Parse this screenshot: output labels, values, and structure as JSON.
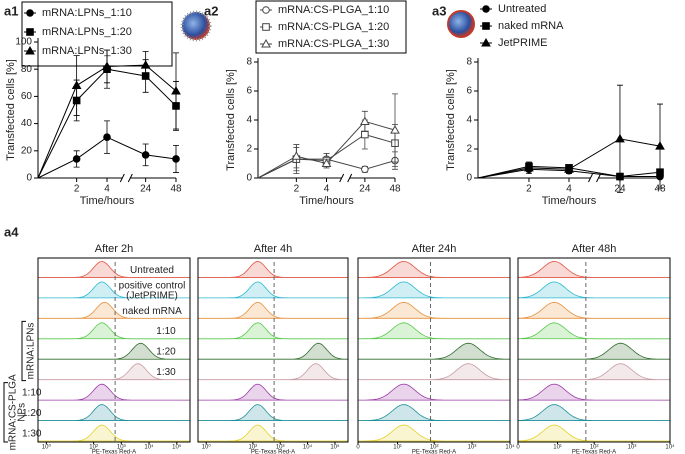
{
  "chart_data": [
    {
      "type": "line",
      "label": "a1",
      "ylabel": "Transfected cells [%]",
      "xlabel": "Time/hours",
      "categories": [
        null,
        "2",
        "4",
        "24",
        "48"
      ],
      "axis_break_after": 2,
      "ylim": [
        0,
        100
      ],
      "yticks": [
        0,
        20,
        40,
        60,
        80,
        100
      ],
      "legend_frame": true,
      "series": [
        {
          "name": "mRNA:LPNs_1:10",
          "color": "#000000",
          "marker": "circle",
          "filled": true,
          "values": [
            0,
            14,
            30,
            17,
            14
          ],
          "errors": [
            null,
            6,
            12,
            8,
            10
          ]
        },
        {
          "name": "mRNA:LPNs_1:20",
          "color": "#000000",
          "marker": "square",
          "filled": true,
          "values": [
            0,
            57,
            80,
            75,
            53
          ],
          "errors": [
            null,
            15,
            14,
            12,
            18
          ]
        },
        {
          "name": "mRNA:LPNs_1:30",
          "color": "#000000",
          "marker": "triangle",
          "filled": true,
          "values": [
            0,
            68,
            82,
            83,
            64
          ],
          "errors": [
            null,
            22,
            12,
            10,
            28
          ]
        }
      ]
    },
    {
      "type": "line",
      "label": "a2",
      "ylabel": "Transfected cells [%]",
      "xlabel": "Time/hours",
      "categories": [
        null,
        "2",
        "4",
        "24",
        "48"
      ],
      "axis_break_after": 2,
      "ylim": [
        0,
        8
      ],
      "yticks": [
        0,
        2,
        4,
        6,
        8
      ],
      "legend_frame": true,
      "series": [
        {
          "name": "mRNA:CS-PLGA_1:10",
          "color": "#444444",
          "marker": "circle",
          "filled": false,
          "values": [
            0,
            1.3,
            1.3,
            0.6,
            1.2
          ],
          "errors": [
            null,
            0.8,
            0.4,
            0.2,
            0.6
          ]
        },
        {
          "name": "mRNA:CS-PLGA_1:20",
          "color": "#444444",
          "marker": "square",
          "filled": false,
          "values": [
            0,
            1.3,
            1.2,
            3.0,
            2.4
          ],
          "errors": [
            null,
            1.0,
            0.5,
            1.0,
            1.3
          ]
        },
        {
          "name": "mRNA:CS-PLGA_1:30",
          "color": "#444444",
          "marker": "triangle",
          "filled": false,
          "values": [
            0,
            1.5,
            1.0,
            3.9,
            3.3
          ],
          "errors": [
            null,
            0.8,
            0.3,
            0.7,
            2.5
          ]
        }
      ]
    },
    {
      "type": "line",
      "label": "a3",
      "ylabel": "Transfected cells [%]",
      "xlabel": "Time/hours",
      "categories": [
        null,
        "2",
        "4",
        "24",
        "48"
      ],
      "axis_break_after": 2,
      "ylim": [
        0,
        8
      ],
      "yticks": [
        0,
        2,
        4,
        6,
        8
      ],
      "legend_frame": false,
      "series": [
        {
          "name": "Untreated",
          "color": "#000000",
          "marker": "circle",
          "filled": true,
          "values": [
            0,
            0.6,
            0.5,
            0.1,
            0.1
          ],
          "errors": [
            null,
            0.3,
            0.2,
            0.1,
            0.1
          ]
        },
        {
          "name": "naked mRNA",
          "color": "#000000",
          "marker": "square",
          "filled": true,
          "values": [
            0,
            0.8,
            0.7,
            0.1,
            0.4
          ],
          "errors": [
            null,
            0.3,
            0.2,
            0.1,
            0.2
          ]
        },
        {
          "name": "JetPRIME",
          "color": "#000000",
          "marker": "triangle",
          "filled": true,
          "values": [
            0,
            0.7,
            0.6,
            2.7,
            2.2
          ],
          "errors": [
            null,
            0.2,
            0.2,
            3.7,
            2.9
          ]
        }
      ]
    },
    {
      "type": "flow",
      "label": "a4",
      "xlabel": "PE-Texas Red-A",
      "xscale": "symlog",
      "row_labels": [
        "Untreated",
        [
          "positive control",
          "(JetPRIME)"
        ],
        "naked mRNA",
        "1:10",
        "1:20",
        "1:30",
        "1:10",
        "1:20",
        "1:30"
      ],
      "row_colors": [
        "#e0533f",
        "#2bb8cf",
        "#e8903a",
        "#56c84a",
        "#2f6b2a",
        "#c79aa2",
        "#9b3aa6",
        "#1f8f9a",
        "#e3d12b"
      ],
      "groups": [
        [
          "mRNA:LPNs"
        ],
        [
          "mRNA:CS-PLGA",
          "NPs"
        ]
      ],
      "panels": [
        {
          "title": "After 2h",
          "xlim": [
            0,
            300000
          ],
          "gate": 600,
          "xticks": [
            {
              "value": 1,
              "label": "10⁰"
            },
            {
              "value": 100,
              "label": "10²"
            },
            {
              "value": 1000,
              "label": "10³"
            },
            {
              "value": 10000,
              "label": "10⁴"
            },
            {
              "value": 100000,
              "label": "10⁵"
            }
          ],
          "peaks": [
            200,
            200,
            250,
            200,
            5000,
            4000,
            200,
            200,
            200
          ]
        },
        {
          "title": "After 4h",
          "xlim": [
            0,
            300000
          ],
          "gate": 600,
          "xticks": [
            {
              "value": 1,
              "label": "10⁰"
            },
            {
              "value": 100,
              "label": "10²"
            },
            {
              "value": 1000,
              "label": "10³"
            },
            {
              "value": 10000,
              "label": "10⁴"
            },
            {
              "value": 100000,
              "label": "10⁵"
            }
          ],
          "peaks": [
            150,
            150,
            150,
            150,
            25000,
            20000,
            150,
            150,
            150
          ]
        },
        {
          "title": "After 24h",
          "xlim": [
            0,
            10000
          ],
          "gate": 80,
          "xticks": [
            0,
            {
              "value": 10,
              "label": "10¹"
            },
            {
              "value": 100,
              "label": "10²"
            },
            {
              "value": 1000,
              "label": "10³"
            },
            {
              "value": 10000,
              "label": "10⁴"
            }
          ],
          "peaks": [
            15,
            15,
            15,
            15,
            800,
            800,
            15,
            15,
            15
          ]
        },
        {
          "title": "After 48h",
          "xlim": [
            0,
            10000
          ],
          "gate": 60,
          "xticks": [
            0,
            {
              "value": 10,
              "label": "10¹"
            },
            {
              "value": 100,
              "label": "10²"
            },
            {
              "value": 1000,
              "label": "10³"
            },
            {
              "value": 10000,
              "label": "10⁴"
            }
          ],
          "peaks": [
            8,
            8,
            8,
            8,
            500,
            500,
            8,
            8,
            8
          ]
        }
      ]
    }
  ]
}
